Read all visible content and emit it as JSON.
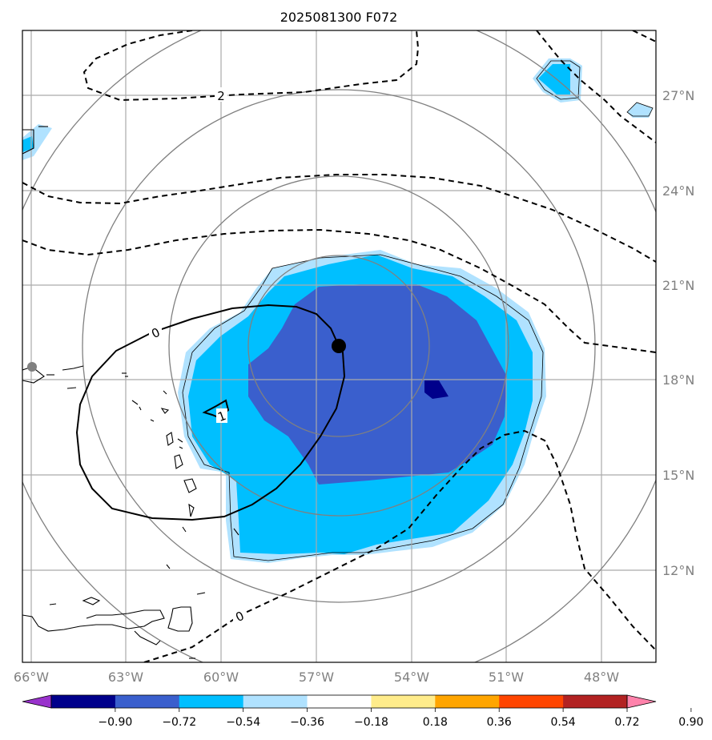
{
  "chart_data": {
    "type": "map",
    "title": "2025081300 F072",
    "lon_ticks": [
      "66°W",
      "63°W",
      "60°W",
      "57°W",
      "54°W",
      "51°W",
      "48°W"
    ],
    "lat_ticks": [
      "27°N",
      "24°N",
      "21°N",
      "18°N",
      "15°N",
      "12°N"
    ],
    "lon_range": [
      -66.3,
      -46.3
    ],
    "lat_range": [
      9.9,
      29.1
    ],
    "grid": true,
    "storm_center": {
      "lon": -56.3,
      "lat": 19.0
    },
    "marker_point": {
      "lon": -66.0,
      "lat": 17.9
    },
    "range_rings": "concentric around storm center",
    "contour_labels": [
      "2",
      "0",
      "1",
      "0"
    ],
    "colorbar": {
      "ticks": [
        "−0.90",
        "−0.72",
        "−0.54",
        "−0.36",
        "−0.18",
        "0.18",
        "0.36",
        "0.54",
        "0.72",
        "0.90"
      ],
      "colors": [
        "#9932cc",
        "#00008b",
        "#3a5fcd",
        "#00bfff",
        "#b0e2ff",
        "#ffffff",
        "#ffec8b",
        "#ffa500",
        "#ff4500",
        "#b22222",
        "#ff82ab"
      ],
      "extend": "both"
    }
  }
}
